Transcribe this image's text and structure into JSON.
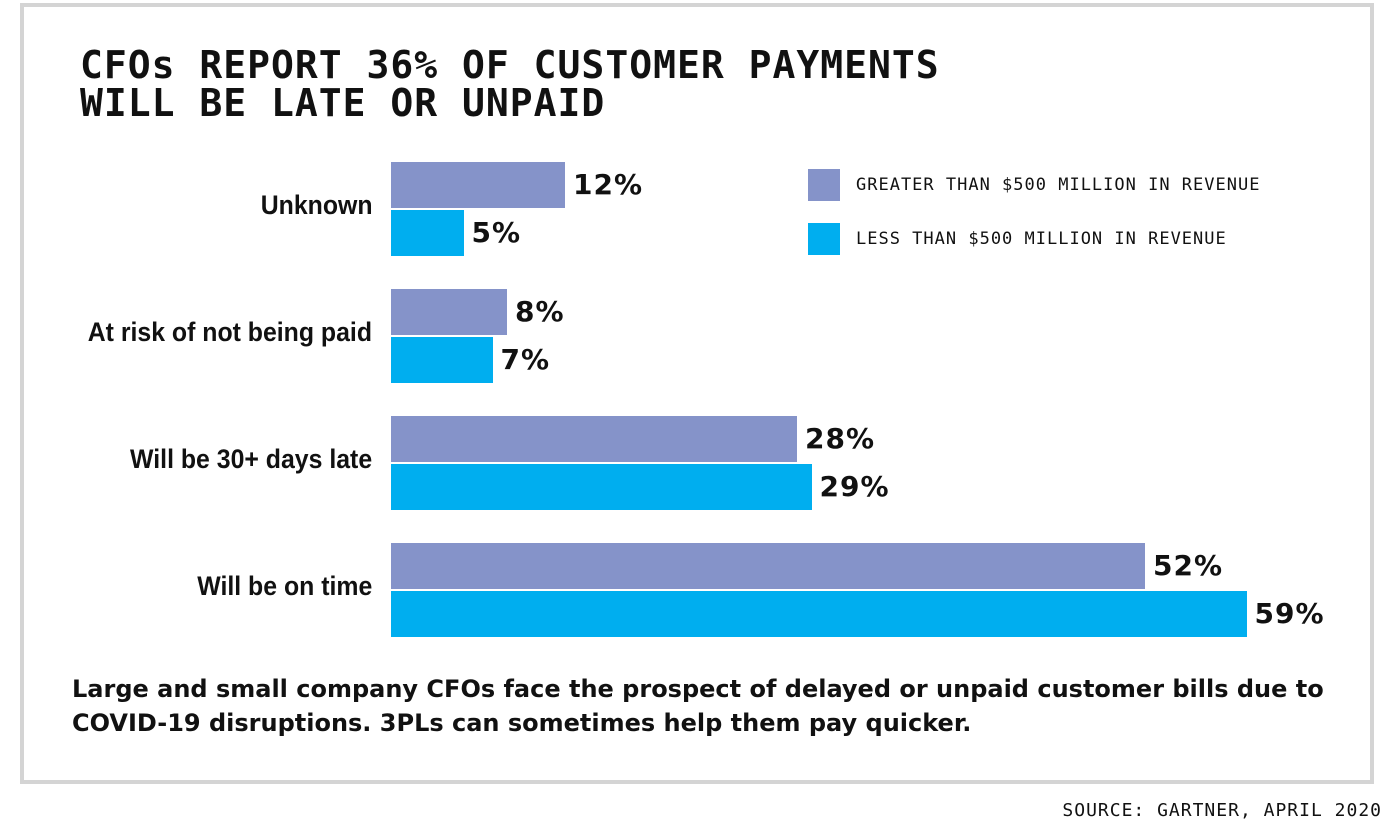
{
  "chart_data": {
    "type": "bar",
    "orientation": "horizontal",
    "title": "CFOs REPORT 36% OF CUSTOMER PAYMENTS\nWILL BE LATE OR UNPAID",
    "categories": [
      "Unknown",
      "At risk of not being paid",
      "Will be 30+ days late",
      "Will be on time"
    ],
    "series": [
      {
        "name": "GREATER THAN $500 MILLION IN REVENUE",
        "color": "#8593c9",
        "values": [
          12,
          8,
          28,
          52
        ],
        "labels": [
          "12%",
          "8%",
          "28%",
          "52%"
        ]
      },
      {
        "name": "LESS THAN $500 MILLION IN REVENUE",
        "color": "#00aeef",
        "values": [
          5,
          7,
          29,
          59
        ],
        "labels": [
          "5%",
          "7%",
          "29%",
          "59%"
        ]
      }
    ],
    "xlim": [
      0,
      59
    ],
    "unit": "%",
    "grid": false,
    "legend": "top-right"
  },
  "caption": "Large and small company CFOs face the prospect of delayed or unpaid customer bills due to COVID-19 disruptions. 3PLs can sometimes help them pay quicker.",
  "source": "SOURCE: GARTNER, APRIL 2020"
}
